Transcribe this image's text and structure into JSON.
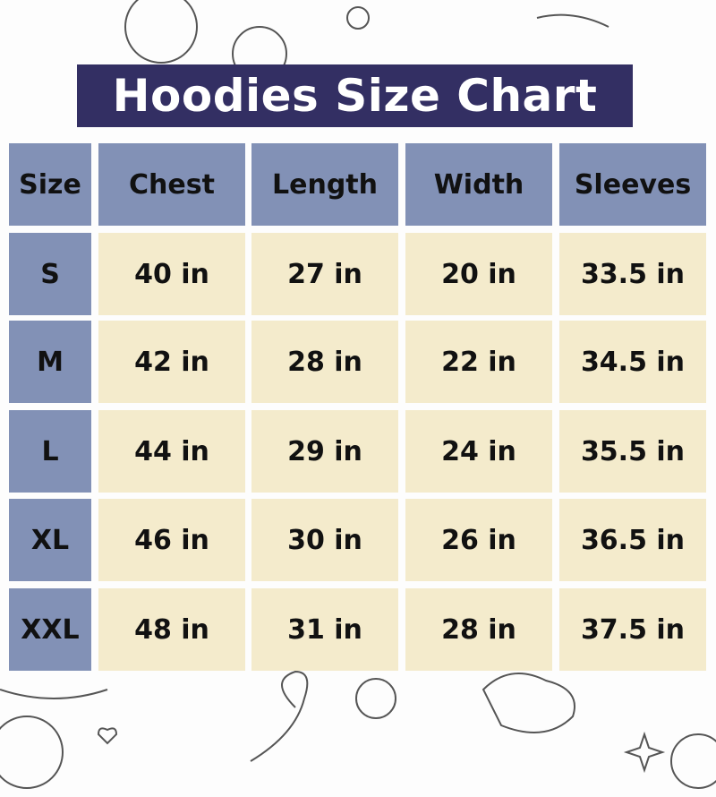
{
  "title": "Hoodies Size Chart",
  "colors": {
    "title_bg": "#332f63",
    "header_bg": "#8291b6",
    "cell_bg": "#f4ebcc"
  },
  "chart_data": {
    "type": "table",
    "title": "Hoodies Size Chart",
    "columns": [
      "Size",
      "Chest",
      "Length",
      "Width",
      "Sleeves"
    ],
    "rows": [
      [
        "S",
        "40 in",
        "27 in",
        "20 in",
        "33.5 in"
      ],
      [
        "M",
        "42 in",
        "28 in",
        "22 in",
        "34.5 in"
      ],
      [
        "L",
        "44 in",
        "29 in",
        "24 in",
        "35.5 in"
      ],
      [
        "XL",
        "46 in",
        "30 in",
        "26 in",
        "36.5 in"
      ],
      [
        "XXL",
        "48 in",
        "31 in",
        "28 in",
        "37.5 in"
      ]
    ]
  }
}
